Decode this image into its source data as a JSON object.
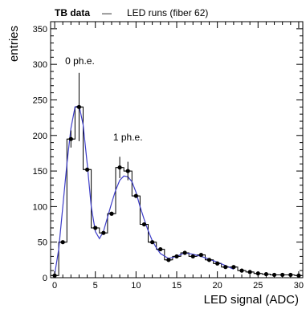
{
  "chart_data": {
    "type": "bar",
    "legend": {
      "bold_label": "TB data",
      "separator": "—",
      "label": "LED runs (fiber 62)",
      "placement": "top-left"
    },
    "xlabel": "LED signal (ADC)",
    "ylabel": "entries",
    "xlim": [
      -0.5,
      30.5
    ],
    "ylim": [
      0,
      360
    ],
    "x_ticks": [
      0,
      5,
      10,
      15,
      20,
      25,
      30
    ],
    "y_ticks": [
      0,
      50,
      100,
      150,
      200,
      250,
      300,
      350
    ],
    "grid": false,
    "histogram": {
      "bin_width": 1,
      "x": [
        0,
        1,
        2,
        3,
        4,
        5,
        6,
        7,
        8,
        9,
        10,
        11,
        12,
        13,
        14,
        15,
        16,
        17,
        18,
        19,
        20,
        21,
        22,
        23,
        24,
        25,
        26,
        27,
        28,
        29,
        30
      ],
      "values": [
        3,
        50,
        195,
        240,
        152,
        70,
        63,
        90,
        155,
        150,
        115,
        75,
        50,
        40,
        25,
        30,
        35,
        30,
        32,
        25,
        20,
        15,
        15,
        10,
        8,
        6,
        5,
        4,
        4,
        4,
        3
      ]
    },
    "error_bars": {
      "2": 12,
      "3": 48,
      "8": 15,
      "9": 13
    },
    "fit": {
      "color": "#3c3cc8",
      "points": [
        [
          0,
          5
        ],
        [
          0.5,
          40
        ],
        [
          1,
          100
        ],
        [
          1.5,
          160
        ],
        [
          2,
          210
        ],
        [
          2.5,
          240
        ],
        [
          3,
          242
        ],
        [
          3.5,
          215
        ],
        [
          4,
          160
        ],
        [
          4.5,
          100
        ],
        [
          5,
          65
        ],
        [
          5.5,
          55
        ],
        [
          6,
          65
        ],
        [
          6.5,
          85
        ],
        [
          7,
          105
        ],
        [
          7.5,
          123
        ],
        [
          8,
          137
        ],
        [
          8.5,
          143
        ],
        [
          9,
          142
        ],
        [
          9.5,
          135
        ],
        [
          10,
          120
        ],
        [
          10.5,
          100
        ],
        [
          11,
          82
        ],
        [
          11.5,
          66
        ],
        [
          12,
          52
        ],
        [
          12.5,
          42
        ],
        [
          13,
          34
        ],
        [
          14,
          27
        ],
        [
          15,
          30
        ],
        [
          16,
          35
        ],
        [
          17,
          33
        ],
        [
          18,
          30
        ],
        [
          19,
          26
        ],
        [
          20,
          22
        ],
        [
          21,
          17
        ],
        [
          22,
          12
        ]
      ]
    },
    "annotations": [
      {
        "text": "0 ph.e.",
        "x": 3.1,
        "y": 300
      },
      {
        "text": "1 ph.e.",
        "x": 9.0,
        "y": 193
      }
    ]
  }
}
